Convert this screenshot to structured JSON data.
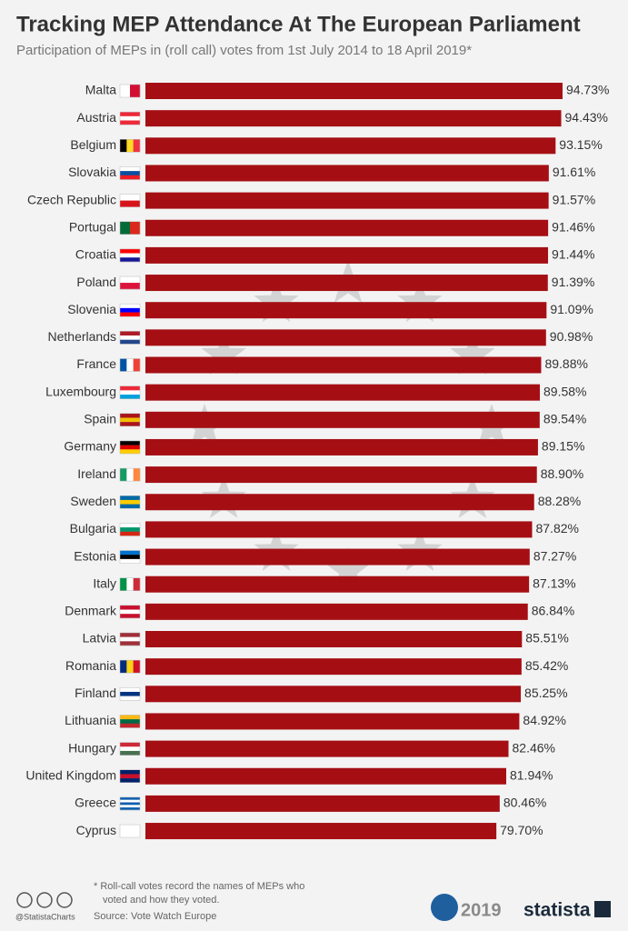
{
  "chart_data": {
    "type": "bar",
    "orientation": "horizontal",
    "title": "Tracking MEP Attendance At The European Parliament",
    "subtitle": "Participation of MEPs in (roll call) votes from 1st July 2014 to 18 April 2019*",
    "categories": [
      "Malta",
      "Austria",
      "Belgium",
      "Slovakia",
      "Czech Republic",
      "Portugal",
      "Croatia",
      "Poland",
      "Slovenia",
      "Netherlands",
      "France",
      "Luxembourg",
      "Spain",
      "Germany",
      "Ireland",
      "Sweden",
      "Bulgaria",
      "Estonia",
      "Italy",
      "Denmark",
      "Latvia",
      "Romania",
      "Finland",
      "Lithuania",
      "Hungary",
      "United Kingdom",
      "Greece",
      "Cyprus"
    ],
    "values": [
      94.73,
      94.43,
      93.15,
      91.61,
      91.57,
      91.46,
      91.44,
      91.39,
      91.09,
      90.98,
      89.88,
      89.58,
      89.54,
      89.15,
      88.9,
      88.28,
      87.82,
      87.27,
      87.13,
      86.84,
      85.51,
      85.42,
      85.25,
      84.92,
      82.46,
      81.94,
      80.46,
      79.7
    ],
    "value_labels": [
      "94.73%",
      "94.43%",
      "93.15%",
      "91.61%",
      "91.57%",
      "91.46%",
      "91.44%",
      "91.39%",
      "91.09%",
      "90.98%",
      "89.88%",
      "89.58%",
      "89.54%",
      "89.15%",
      "88.90%",
      "88.28%",
      "87.82%",
      "87.27%",
      "87.13%",
      "86.84%",
      "85.51%",
      "85.42%",
      "85.25%",
      "84.92%",
      "82.46%",
      "81.94%",
      "80.46%",
      "79.70%"
    ],
    "color": "#a50f14",
    "xlim": [
      0,
      100
    ],
    "footnote": [
      "* Roll-call votes record the names of MEPs who",
      "voted and how they voted."
    ],
    "source": "Source: Vote Watch Europe",
    "credit": "@StatistaCharts",
    "year": "2019",
    "brand": "statista"
  }
}
